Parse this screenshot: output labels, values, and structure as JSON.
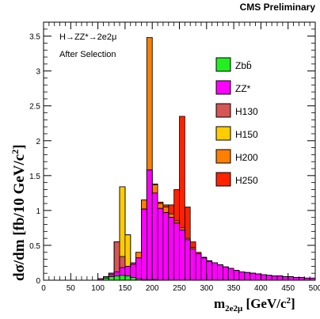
{
  "header": {
    "preliminary": "CMS Preliminary"
  },
  "annotations": {
    "process_line": "H→ZZ*→2e2μ",
    "selection_line": "After Selection"
  },
  "chart_data": {
    "type": "bar",
    "stacked": true,
    "xlabel": "m2e2μ [GeV/c²]",
    "ylabel": "dσ/dm [fb/10 GeV/c²]",
    "xlim": [
      0,
      500
    ],
    "ylim": [
      0,
      3.7
    ],
    "x_ticks": [
      0,
      50,
      100,
      150,
      200,
      250,
      300,
      350,
      400,
      450,
      500
    ],
    "y_ticks": [
      0,
      0.5,
      1,
      1.5,
      2,
      2.5,
      3,
      3.5
    ],
    "bin_width": 10,
    "bin_edges": [
      100,
      110,
      120,
      130,
      140,
      150,
      160,
      170,
      180,
      190,
      200,
      210,
      220,
      230,
      240,
      250,
      260,
      270,
      280,
      290,
      300,
      310,
      320,
      330,
      340,
      350,
      360,
      370,
      380,
      390,
      400,
      410,
      420,
      430,
      440,
      450,
      460,
      470,
      480,
      490,
      500
    ],
    "legend_position": "right",
    "series": [
      {
        "name": "Zbb̄",
        "color": "#22ee22",
        "total": [
          0.0,
          0.03,
          0.05,
          0.06,
          0.07,
          0.06,
          0.04,
          0.02,
          0.01,
          0.01,
          0.01,
          0.0,
          0.0,
          0.0,
          0.0,
          0.0,
          0.0,
          0.0,
          0.0,
          0.0,
          0.0,
          0.0,
          0.0,
          0.0,
          0.0,
          0.0,
          0.0,
          0.0,
          0.0,
          0.0,
          0.0,
          0.0,
          0.0,
          0.0,
          0.0,
          0.0,
          0.0,
          0.0,
          0.0,
          0.0
        ]
      },
      {
        "name": "ZZ*",
        "color": "#ff00ff",
        "total": [
          0.02,
          0.05,
          0.08,
          0.12,
          0.18,
          0.2,
          0.23,
          0.32,
          1.02,
          1.58,
          1.25,
          1.03,
          0.97,
          0.9,
          0.82,
          0.72,
          0.58,
          0.45,
          0.38,
          0.32,
          0.27,
          0.25,
          0.22,
          0.19,
          0.17,
          0.14,
          0.12,
          0.11,
          0.1,
          0.09,
          0.08,
          0.07,
          0.06,
          0.06,
          0.05,
          0.05,
          0.04,
          0.04,
          0.03,
          0.03
        ]
      },
      {
        "name": "H130",
        "color": "#d65555",
        "total": [
          0.02,
          0.05,
          0.1,
          0.55,
          0.34,
          0.2,
          0.23,
          0.32,
          1.02,
          1.58,
          1.25,
          1.03,
          0.97,
          0.9,
          0.82,
          0.72,
          0.58,
          0.45,
          0.38,
          0.32,
          0.27,
          0.25,
          0.22,
          0.19,
          0.17,
          0.14,
          0.12,
          0.11,
          0.1,
          0.09,
          0.08,
          0.07,
          0.06,
          0.06,
          0.05,
          0.05,
          0.04,
          0.04,
          0.03,
          0.03
        ]
      },
      {
        "name": "H150",
        "color": "#ffcc00",
        "total": [
          0.02,
          0.05,
          0.1,
          0.55,
          1.34,
          0.65,
          0.23,
          0.32,
          1.02,
          1.58,
          1.25,
          1.03,
          0.97,
          0.9,
          0.82,
          0.72,
          0.58,
          0.45,
          0.38,
          0.32,
          0.27,
          0.25,
          0.22,
          0.19,
          0.17,
          0.14,
          0.12,
          0.11,
          0.1,
          0.09,
          0.08,
          0.07,
          0.06,
          0.06,
          0.05,
          0.05,
          0.04,
          0.04,
          0.03,
          0.03
        ]
      },
      {
        "name": "H200",
        "color": "#ff7f00",
        "total": [
          0.02,
          0.05,
          0.1,
          0.55,
          1.34,
          0.65,
          0.25,
          0.4,
          1.15,
          3.48,
          1.37,
          1.1,
          1.05,
          0.95,
          0.85,
          0.75,
          0.6,
          0.47,
          0.38,
          0.32,
          0.27,
          0.25,
          0.22,
          0.19,
          0.17,
          0.14,
          0.12,
          0.11,
          0.1,
          0.09,
          0.08,
          0.07,
          0.06,
          0.06,
          0.05,
          0.05,
          0.04,
          0.04,
          0.03,
          0.03
        ]
      },
      {
        "name": "H250",
        "color": "#ff2200",
        "total": [
          0.02,
          0.05,
          0.1,
          0.55,
          1.34,
          0.65,
          0.25,
          0.4,
          1.15,
          3.48,
          1.38,
          1.12,
          1.08,
          1.08,
          1.3,
          2.35,
          1.05,
          0.55,
          0.4,
          0.33,
          0.28,
          0.25,
          0.22,
          0.19,
          0.17,
          0.14,
          0.12,
          0.11,
          0.1,
          0.09,
          0.08,
          0.07,
          0.06,
          0.06,
          0.05,
          0.05,
          0.04,
          0.04,
          0.03,
          0.03
        ]
      }
    ]
  }
}
